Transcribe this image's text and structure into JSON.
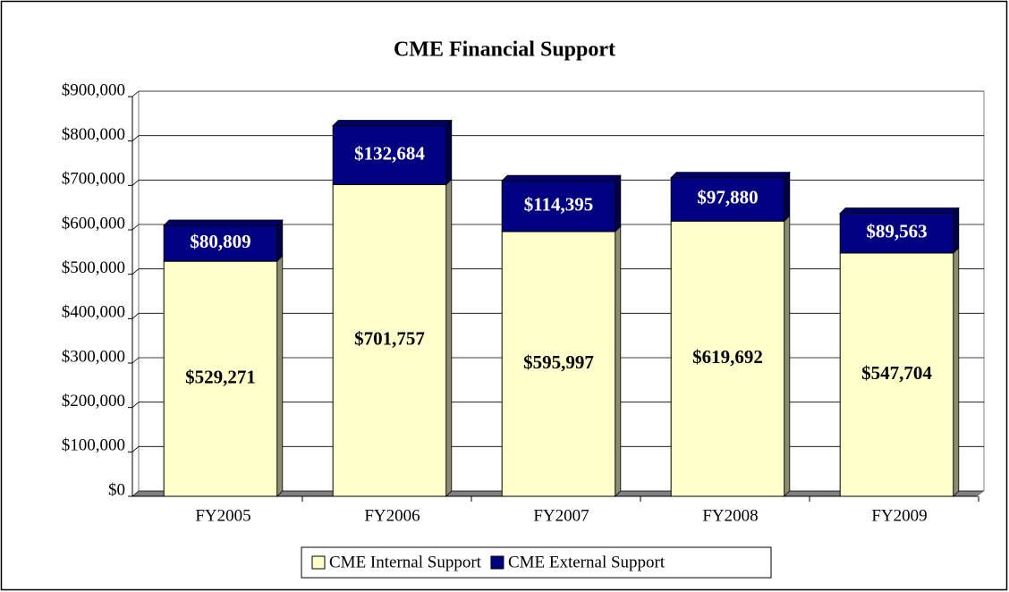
{
  "chart_data": {
    "type": "bar",
    "stacked": true,
    "title": "CME Financial Support",
    "categories": [
      "FY2005",
      "FY2006",
      "FY2007",
      "FY2008",
      "FY2009"
    ],
    "series": [
      {
        "name": "CME Internal Support",
        "color": "#ffffcc",
        "values": [
          529271,
          701757,
          595997,
          619692,
          547704
        ],
        "value_labels": [
          "$529,271",
          "$701,757",
          "$595,997",
          "$619,692",
          "$547,704"
        ]
      },
      {
        "name": "CME External Support",
        "color": "#000080",
        "values": [
          80809,
          132684,
          114395,
          97880,
          89563
        ],
        "value_labels": [
          "$80,809",
          "$132,684",
          "$114,395",
          "$97,880",
          "$89,563"
        ]
      }
    ],
    "ylim": [
      0,
      900000
    ],
    "yticks": [
      {
        "value": 0,
        "label": "$0"
      },
      {
        "value": 100000,
        "label": "$100,000"
      },
      {
        "value": 200000,
        "label": "$200,000"
      },
      {
        "value": 300000,
        "label": "$300,000"
      },
      {
        "value": 400000,
        "label": "$400,000"
      },
      {
        "value": 500000,
        "label": "$500,000"
      },
      {
        "value": 600000,
        "label": "$600,000"
      },
      {
        "value": 700000,
        "label": "$700,000"
      },
      {
        "value": 800000,
        "label": "$800,000"
      },
      {
        "value": 900000,
        "label": "$900,000"
      }
    ],
    "grid": true,
    "legend": "bottom"
  }
}
